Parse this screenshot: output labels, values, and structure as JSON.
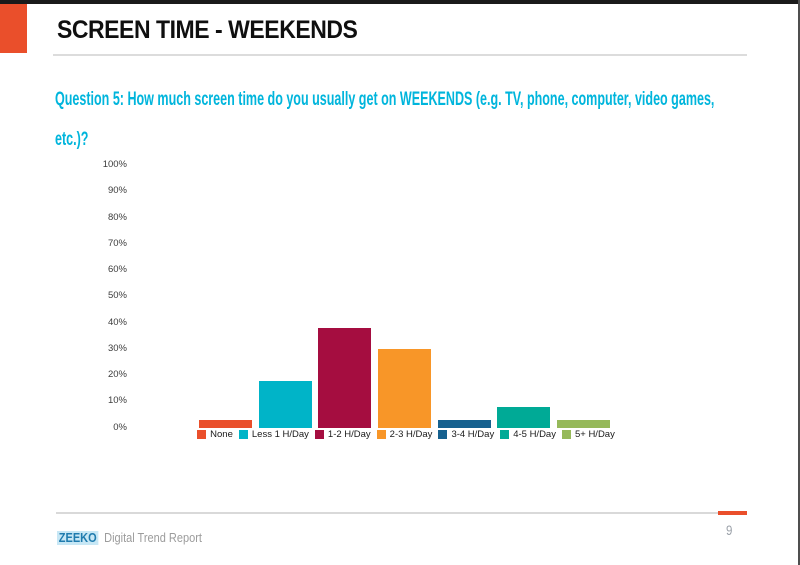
{
  "slide": {
    "header": {
      "title": "SCREEN TIME - WEEKENDS"
    },
    "question_lines": [
      "Question 5: How much screen time do you usually get on WEEKENDS (e.g. TV, phone, computer, video games,",
      "etc.)?"
    ],
    "footer": {
      "brand": "ZEEKO",
      "report_name": "Digital Trend Report",
      "page_number": "9"
    }
  },
  "chart_data": {
    "type": "bar",
    "title": "",
    "xlabel": "",
    "ylabel": "",
    "categories": [
      "None",
      "Less 1 H/Day",
      "1-2 H/Day",
      "2-3 H/Day",
      "3-4 H/Day",
      "4-5 H/Day",
      "5+ H/Day"
    ],
    "values": [
      3,
      18,
      38,
      30,
      3,
      8,
      3
    ],
    "unit": "%",
    "bar_colors": [
      "#ea4f2b",
      "#00b4c8",
      "#a50d40",
      "#f89628",
      "#16618f",
      "#00aa96",
      "#96b95a"
    ],
    "ylim": [
      0,
      100
    ],
    "ytick_labels": [
      "100%",
      "90%",
      "80%",
      "70%",
      "60%",
      "50%",
      "40%",
      "30%",
      "20%",
      "10%",
      "0%"
    ],
    "grid": false,
    "legend_position": "bottom"
  },
  "colors": {
    "accent_orange": "#ea4f2b",
    "question_text": "#00b5dc",
    "brand_text": "#1f7bae",
    "brand_highlight": "#c7e7f5",
    "muted_text": "#9c9c9c",
    "rule_gray": "#d9d9d9",
    "top_bar": "#1a1a1a"
  }
}
